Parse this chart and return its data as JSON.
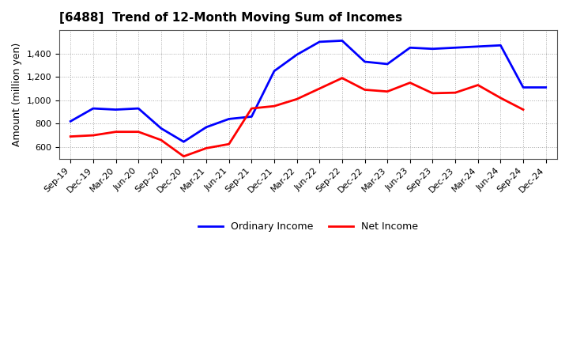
{
  "title": "[6488]  Trend of 12-Month Moving Sum of Incomes",
  "ylabel": "Amount (million yen)",
  "labels": [
    "Sep-19",
    "Dec-19",
    "Mar-20",
    "Jun-20",
    "Sep-20",
    "Dec-20",
    "Mar-21",
    "Jun-21",
    "Sep-21",
    "Dec-21",
    "Mar-22",
    "Jun-22",
    "Sep-22",
    "Dec-22",
    "Mar-23",
    "Jun-23",
    "Sep-23",
    "Dec-23",
    "Mar-24",
    "Jun-24",
    "Sep-24",
    "Dec-24"
  ],
  "ordinary_income": [
    820,
    930,
    920,
    930,
    760,
    645,
    770,
    840,
    860,
    1250,
    1390,
    1500,
    1510,
    1330,
    1310,
    1450,
    1440,
    1450,
    1460,
    1470,
    1110,
    1110
  ],
  "net_income": [
    690,
    700,
    730,
    730,
    660,
    520,
    590,
    625,
    930,
    950,
    1010,
    1100,
    1190,
    1090,
    1075,
    1150,
    1060,
    1065,
    1130,
    1020,
    920,
    null
  ],
  "ordinary_color": "#0000ff",
  "net_color": "#ff0000",
  "background_color": "#ffffff",
  "grid_color": "#aaaaaa",
  "ylim_min": 500,
  "ylim_max": 1600,
  "yticks": [
    600,
    800,
    1000,
    1200,
    1400
  ],
  "title_fontsize": 11,
  "axis_label_fontsize": 9,
  "tick_fontsize": 8,
  "legend_fontsize": 9,
  "line_width": 2.0
}
